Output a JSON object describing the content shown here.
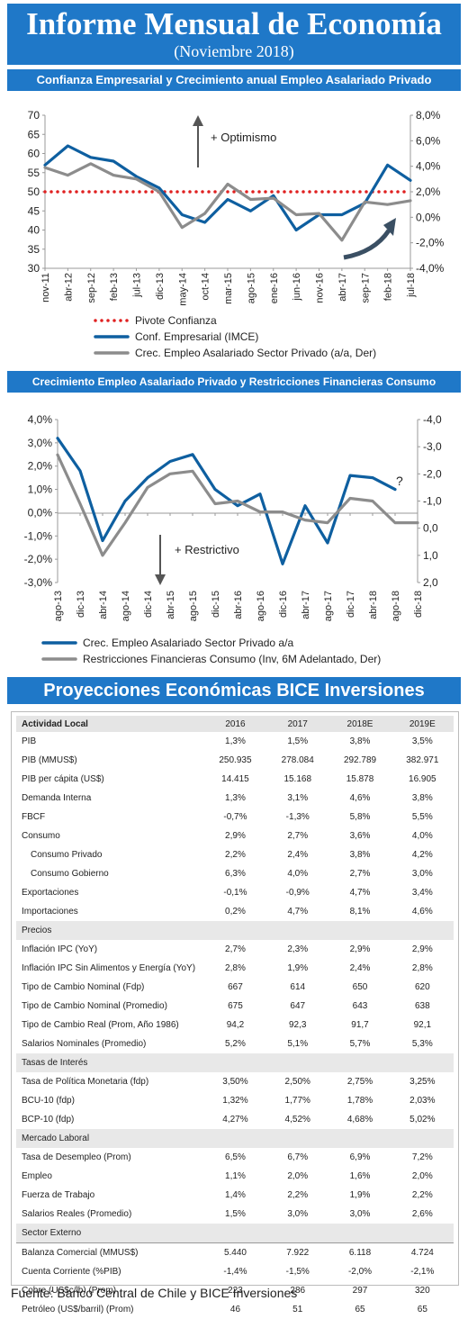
{
  "header": {
    "title": "Informe Mensual de Economía",
    "subtitle": "(Noviembre 2018)"
  },
  "colors": {
    "blue": "#1f78c8",
    "series_blue": "#0e5fa0",
    "series_gray": "#8c8c8c",
    "pivot_red": "#e02020"
  },
  "chart_data": [
    {
      "type": "line",
      "title": "Confianza Empresarial y Crecimiento anual Empleo Asalariado Privado",
      "x": [
        "nov-11",
        "abr-12",
        "sep-12",
        "feb-13",
        "jul-13",
        "dic-13",
        "may-14",
        "oct-14",
        "mar-15",
        "ago-15",
        "ene-16",
        "jun-16",
        "nov-16",
        "abr-17",
        "sep-17",
        "feb-18",
        "jul-18"
      ],
      "y_left_ticks": [
        "70",
        "65",
        "60",
        "55",
        "50",
        "45",
        "40",
        "35",
        "30"
      ],
      "y_right_ticks": [
        "8,0%",
        "6,0%",
        "4,0%",
        "2,0%",
        "0,0%",
        "-2,0%",
        "-4,0%"
      ],
      "ylim_left": [
        30,
        70
      ],
      "ylim_right": [
        -4,
        8
      ],
      "annotations": [
        "+ Optimismo"
      ],
      "series": [
        {
          "name": "Pivote Confianza",
          "axis": "left",
          "style": "dotted",
          "values": [
            50,
            50,
            50,
            50,
            50,
            50,
            50,
            50,
            50,
            50,
            50,
            50,
            50,
            50,
            50,
            50,
            50
          ]
        },
        {
          "name": "Conf. Empresarial (IMCE)",
          "axis": "left",
          "values": [
            57,
            62,
            59,
            58,
            54,
            51,
            44,
            42,
            48,
            45,
            49,
            40,
            44,
            44,
            47,
            57,
            53
          ]
        },
        {
          "name": "Crec. Empleo Asalariado Sector Privado (a/a, Der)",
          "axis": "right",
          "values": [
            3.9,
            3.3,
            4.2,
            3.3,
            3.0,
            2.0,
            -0.8,
            0.3,
            2.6,
            1.4,
            1.5,
            0.2,
            0.3,
            -1.8,
            1.2,
            1.0,
            1.3
          ]
        }
      ]
    },
    {
      "type": "line",
      "title": "Crecimiento Empleo Asalariado Privado y Restricciones Financieras Consumo",
      "x": [
        "ago-13",
        "dic-13",
        "abr-14",
        "ago-14",
        "dic-14",
        "abr-15",
        "ago-15",
        "dic-15",
        "abr-16",
        "ago-16",
        "dic-16",
        "abr-17",
        "ago-17",
        "dic-17",
        "abr-18",
        "ago-18",
        "dic-18"
      ],
      "y_left_ticks": [
        "4,0%",
        "3,0%",
        "2,0%",
        "1,0%",
        "0,0%",
        "-1,0%",
        "-2,0%",
        "-3,0%"
      ],
      "y_right_ticks": [
        "-4,0",
        "-3,0",
        "-2,0",
        "-1,0",
        "0,0",
        "1,0",
        "2,0"
      ],
      "ylim_left": [
        -3,
        4
      ],
      "ylim_right": [
        2,
        -4
      ],
      "annotations": [
        "+ Restrictivo",
        "?"
      ],
      "series": [
        {
          "name": "Crec. Empleo Asalariado Sector Privado a/a",
          "axis": "left",
          "values": [
            3.2,
            1.8,
            -1.2,
            0.5,
            1.5,
            2.2,
            2.5,
            1.0,
            0.3,
            0.8,
            -2.2,
            0.3,
            -1.3,
            1.6,
            1.5,
            1.0,
            null
          ]
        },
        {
          "name": "Restricciones Financieras Consumo (Inv, 6M Adelantado, Der)",
          "axis": "right",
          "values": [
            -2.7,
            -0.9,
            1.0,
            -0.2,
            -1.5,
            -2.0,
            -2.1,
            -0.9,
            -1.0,
            -0.6,
            -0.6,
            -0.3,
            -0.2,
            -1.1,
            -1.0,
            -0.2,
            -0.2
          ]
        }
      ]
    }
  ],
  "chart1_legend": [
    "Pivote Confianza",
    "Conf. Empresarial (IMCE)",
    "Crec. Empleo Asalariado Sector Privado (a/a, Der)"
  ],
  "chart2_legend": [
    "Crec. Empleo Asalariado Sector Privado a/a",
    "Restricciones Financieras Consumo (Inv, 6M Adelantado, Der)"
  ],
  "projections": {
    "title": "Proyecciones Económicas BICE Inversiones",
    "header": [
      "Actividad Local",
      "2016",
      "2017",
      "2018E",
      "2019E"
    ],
    "rows": [
      {
        "kind": "row",
        "cells": [
          "PIB",
          "1,3%",
          "1,5%",
          "3,8%",
          "3,5%"
        ]
      },
      {
        "kind": "row",
        "cells": [
          "PIB (MMUS$)",
          "250.935",
          "278.084",
          "292.789",
          "382.971"
        ]
      },
      {
        "kind": "row",
        "cells": [
          "PIB per cápita (US$)",
          "14.415",
          "15.168",
          "15.878",
          "16.905"
        ]
      },
      {
        "kind": "row",
        "cells": [
          "Demanda Interna",
          "1,3%",
          "3,1%",
          "4,6%",
          "3,8%"
        ]
      },
      {
        "kind": "row",
        "cells": [
          "FBCF",
          "-0,7%",
          "-1,3%",
          "5,8%",
          "5,5%"
        ]
      },
      {
        "kind": "row",
        "cells": [
          "Consumo",
          "2,9%",
          "2,7%",
          "3,6%",
          "4,0%"
        ]
      },
      {
        "kind": "sub",
        "cells": [
          "Consumo Privado",
          "2,2%",
          "2,4%",
          "3,8%",
          "4,2%"
        ]
      },
      {
        "kind": "sub",
        "cells": [
          "Consumo Gobierno",
          "6,3%",
          "4,0%",
          "2,7%",
          "3,0%"
        ]
      },
      {
        "kind": "row",
        "cells": [
          "Exportaciones",
          "-0,1%",
          "-0,9%",
          "4,7%",
          "3,4%"
        ]
      },
      {
        "kind": "row",
        "cells": [
          "Importaciones",
          "0,2%",
          "4,7%",
          "8,1%",
          "4,6%"
        ]
      },
      {
        "kind": "sec",
        "cells": [
          "Precios",
          "",
          "",
          "",
          ""
        ]
      },
      {
        "kind": "row",
        "cells": [
          "Inflación IPC (YoY)",
          "2,7%",
          "2,3%",
          "2,9%",
          "2,9%"
        ]
      },
      {
        "kind": "row",
        "cells": [
          "Inflación IPC Sin Alimentos y Energía (YoY)",
          "2,8%",
          "1,9%",
          "2,4%",
          "2,8%"
        ]
      },
      {
        "kind": "row",
        "cells": [
          "Tipo de Cambio Nominal (Fdp)",
          "667",
          "614",
          "650",
          "620"
        ]
      },
      {
        "kind": "row",
        "cells": [
          "Tipo de Cambio Nominal (Promedio)",
          "675",
          "647",
          "643",
          "638"
        ]
      },
      {
        "kind": "row",
        "cells": [
          "Tipo de Cambio Real (Prom, Año 1986)",
          "94,2",
          "92,3",
          "91,7",
          "92,1"
        ]
      },
      {
        "kind": "row",
        "cells": [
          "Salarios Nominales (Promedio)",
          "5,2%",
          "5,1%",
          "5,7%",
          "5,3%"
        ]
      },
      {
        "kind": "sec",
        "cells": [
          "Tasas de Interés",
          "",
          "",
          "",
          ""
        ]
      },
      {
        "kind": "row",
        "cells": [
          "Tasa de Política Monetaria (fdp)",
          "3,50%",
          "2,50%",
          "2,75%",
          "3,25%"
        ]
      },
      {
        "kind": "row",
        "cells": [
          "BCU-10 (fdp)",
          "1,32%",
          "1,77%",
          "1,78%",
          "2,03%"
        ]
      },
      {
        "kind": "row",
        "cells": [
          "BCP-10 (fdp)",
          "4,27%",
          "4,52%",
          "4,68%",
          "5,02%"
        ]
      },
      {
        "kind": "sec",
        "cells": [
          "Mercado Laboral",
          "",
          "",
          "",
          ""
        ]
      },
      {
        "kind": "row",
        "cells": [
          "Tasa de Desempleo (Prom)",
          "6,5%",
          "6,7%",
          "6,9%",
          "7,2%"
        ]
      },
      {
        "kind": "row",
        "cells": [
          "Empleo",
          "1,1%",
          "2,0%",
          "1,6%",
          "2,0%"
        ]
      },
      {
        "kind": "row",
        "cells": [
          "Fuerza de Trabajo",
          "1,4%",
          "2,2%",
          "1,9%",
          "2,2%"
        ]
      },
      {
        "kind": "row",
        "cells": [
          "Salarios Reales (Promedio)",
          "1,5%",
          "3,0%",
          "3,0%",
          "2,6%"
        ]
      },
      {
        "kind": "sec",
        "cells": [
          "Sector Externo",
          "",
          "",
          "",
          ""
        ]
      },
      {
        "kind": "sep",
        "cells": [
          "Balanza Comercial (MMUS$)",
          "5.440",
          "7.922",
          "6.118",
          "4.724"
        ]
      },
      {
        "kind": "row",
        "cells": [
          "Cuenta Corriente (%PIB)",
          "-1,4%",
          "-1,5%",
          "-2,0%",
          "-2,1%"
        ]
      },
      {
        "kind": "row",
        "cells": [
          "Cobre (US$c/lb) (Prom)",
          "223",
          "286",
          "297",
          "320"
        ]
      },
      {
        "kind": "row",
        "cells": [
          "Petróleo (US$/barril) (Prom)",
          "46",
          "51",
          "65",
          "65"
        ]
      }
    ]
  },
  "source": "Fuente: Banco Central de Chile y BICE Inversiones"
}
